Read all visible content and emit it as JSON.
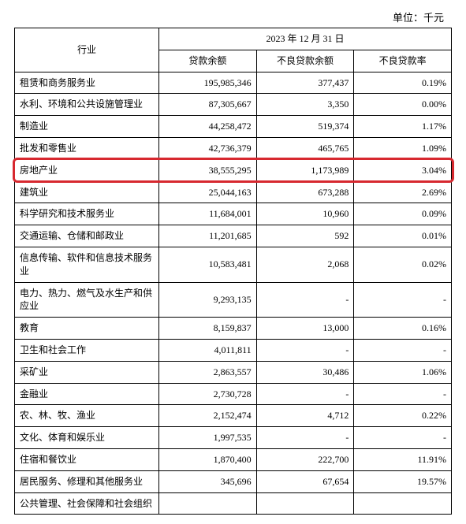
{
  "unit_label": "单位：千元",
  "header": {
    "industry": "行业",
    "date": "2023 年 12 月 31 日",
    "loan_balance": "贷款余额",
    "npl_balance": "不良贷款余额",
    "npl_ratio": "不良贷款率"
  },
  "rows": [
    {
      "ind": "租赁和商务服务业",
      "a": "195,985,346",
      "b": "377,437",
      "c": "0.19%"
    },
    {
      "ind": "水利、环境和公共设施管理业",
      "a": "87,305,667",
      "b": "3,350",
      "c": "0.00%"
    },
    {
      "ind": "制造业",
      "a": "44,258,472",
      "b": "519,374",
      "c": "1.17%"
    },
    {
      "ind": "批发和零售业",
      "a": "42,736,379",
      "b": "465,765",
      "c": "1.09%"
    },
    {
      "ind": "房地产业",
      "a": "38,555,295",
      "b": "1,173,989",
      "c": "3.04%",
      "hl": true
    },
    {
      "ind": "建筑业",
      "a": "25,044,163",
      "b": "673,288",
      "c": "2.69%"
    },
    {
      "ind": "科学研究和技术服务业",
      "a": "11,684,001",
      "b": "10,960",
      "c": "0.09%"
    },
    {
      "ind": "交通运输、仓储和邮政业",
      "a": "11,201,685",
      "b": "592",
      "c": "0.01%"
    },
    {
      "ind": "信息传输、软件和信息技术服务业",
      "a": "10,583,481",
      "b": "2,068",
      "c": "0.02%"
    },
    {
      "ind": "电力、热力、燃气及水生产和供应业",
      "a": "9,293,135",
      "b": "-",
      "c": "-"
    },
    {
      "ind": "教育",
      "a": "8,159,837",
      "b": "13,000",
      "c": "0.16%"
    },
    {
      "ind": "卫生和社会工作",
      "a": "4,011,811",
      "b": "-",
      "c": "-"
    },
    {
      "ind": "采矿业",
      "a": "2,863,557",
      "b": "30,486",
      "c": "1.06%"
    },
    {
      "ind": "金融业",
      "a": "2,730,728",
      "b": "-",
      "c": "-"
    },
    {
      "ind": "农、林、牧、渔业",
      "a": "2,152,474",
      "b": "4,712",
      "c": "0.22%"
    },
    {
      "ind": "文化、体育和娱乐业",
      "a": "1,997,535",
      "b": "-",
      "c": "-"
    },
    {
      "ind": "住宿和餐饮业",
      "a": "1,870,400",
      "b": "222,700",
      "c": "11.91%"
    },
    {
      "ind": "居民服务、修理和其他服务业",
      "a": "345,696",
      "b": "67,654",
      "c": "19.57%"
    },
    {
      "ind": "公共管理、社会保障和社会组织",
      "a": "",
      "b": "",
      "c": ""
    }
  ],
  "highlight_color": "#d7282f"
}
